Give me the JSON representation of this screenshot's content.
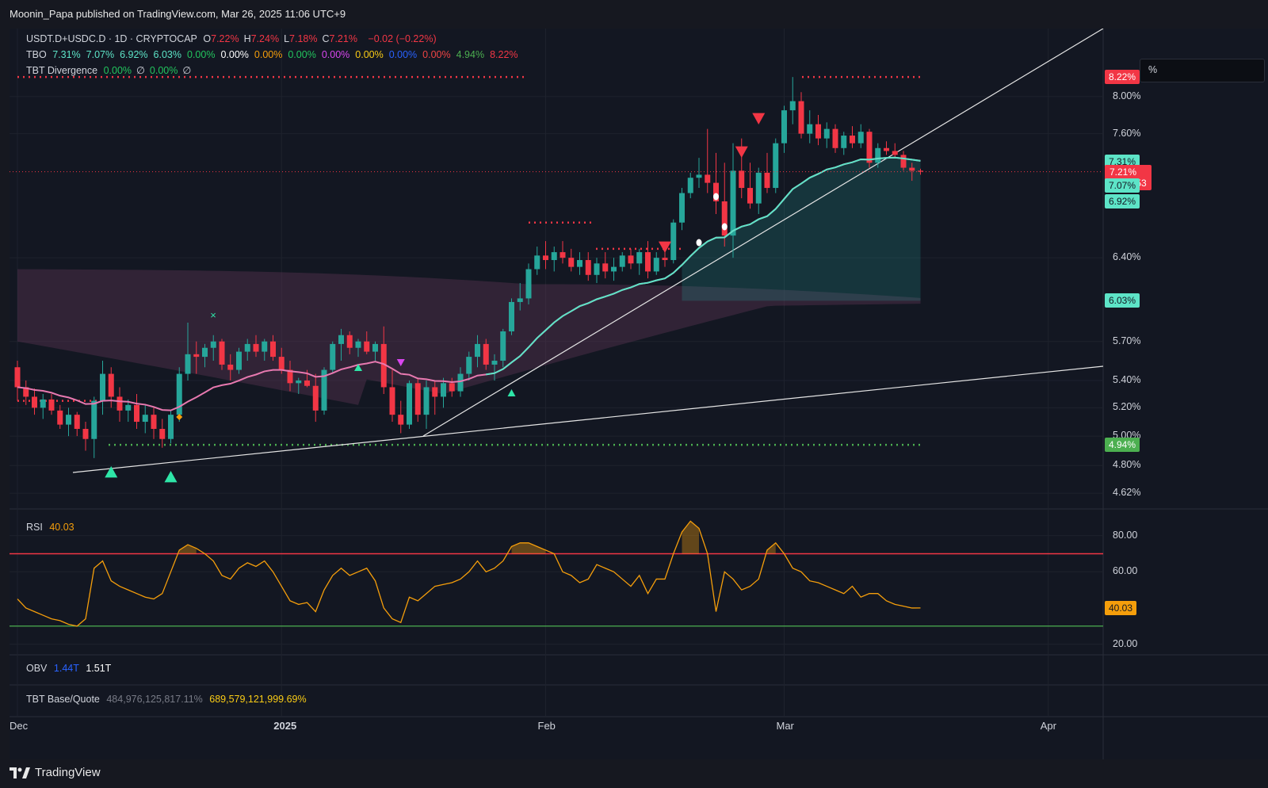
{
  "header": {
    "published": "Moonin_Papa published on TradingView.com, Mar 26, 2025 11:06 UTC+9"
  },
  "legend": {
    "symbol": "USDT.D+USDC.D · 1D · CRYPTOCAP",
    "ohlc": [
      {
        "k": "O",
        "v": "7.22%"
      },
      {
        "k": "H",
        "v": "7.24%"
      },
      {
        "k": "L",
        "v": "7.18%"
      },
      {
        "k": "C",
        "v": "7.21%"
      }
    ],
    "change": "−0.02 (−0.22%)",
    "tbo_label": "TBO",
    "tbo_values": [
      {
        "v": "7.31%",
        "color": "#5de4c7"
      },
      {
        "v": "7.07%",
        "color": "#5de4c7"
      },
      {
        "v": "6.92%",
        "color": "#5de4c7"
      },
      {
        "v": "6.03%",
        "color": "#5de4c7"
      },
      {
        "v": "0.00%",
        "color": "#22c55e"
      },
      {
        "v": "0.00%",
        "color": "#ffffff"
      },
      {
        "v": "0.00%",
        "color": "#f59e0b"
      },
      {
        "v": "0.00%",
        "color": "#22c55e"
      },
      {
        "v": "0.00%",
        "color": "#d946ef"
      },
      {
        "v": "0.00%",
        "color": "#facc15"
      },
      {
        "v": "0.00%",
        "color": "#2962ff"
      },
      {
        "v": "0.00%",
        "color": "#ef4444"
      },
      {
        "v": "4.94%",
        "color": "#4caf50"
      },
      {
        "v": "8.22%",
        "color": "#f23645"
      }
    ],
    "divergence_label": "TBT Divergence",
    "divergence_values": [
      "0.00%",
      "∅",
      "0.00%",
      "∅"
    ]
  },
  "percent_box": "%",
  "price_axis": {
    "ticks": [
      {
        "label": "8.00%",
        "v": 8.0
      },
      {
        "label": "7.60%",
        "v": 7.6
      },
      {
        "label": "6.40%",
        "v": 6.4
      },
      {
        "label": "5.70%",
        "v": 5.7
      },
      {
        "label": "5.40%",
        "v": 5.4
      },
      {
        "label": "5.20%",
        "v": 5.2
      },
      {
        "label": "5.00%",
        "v": 5.0
      },
      {
        "label": "4.80%",
        "v": 4.8
      },
      {
        "label": "4.62%",
        "v": 4.62
      }
    ],
    "tags": [
      {
        "label": "8.22%",
        "v": 8.22,
        "bg": "#f23645",
        "fg": "#ffffff"
      },
      {
        "label": "7.31%",
        "v": 7.31,
        "bg": "#5de4c7",
        "fg": "#131722"
      },
      {
        "label": "7.21%",
        "v": 7.21,
        "bg": "#f23645",
        "fg": "#ffffff",
        "sub": "21:53:53"
      },
      {
        "label": "7.07%",
        "v": 7.07,
        "bg": "#5de4c7",
        "fg": "#131722"
      },
      {
        "label": "6.92%",
        "v": 6.92,
        "bg": "#5de4c7",
        "fg": "#131722"
      },
      {
        "label": "6.03%",
        "v": 6.03,
        "bg": "#5de4c7",
        "fg": "#131722"
      },
      {
        "label": "4.94%",
        "v": 4.94,
        "bg": "#4caf50",
        "fg": "#ffffff"
      }
    ]
  },
  "rsi": {
    "label": "RSI",
    "value": "40.03",
    "ticks": [
      {
        "label": "80.00",
        "v": 80
      },
      {
        "label": "60.00",
        "v": 60
      },
      {
        "label": "20.00",
        "v": 20
      }
    ],
    "upper": 70,
    "lower": 30,
    "tag": {
      "label": "40.03",
      "v": 40.03
    }
  },
  "obv": {
    "label": "OBV",
    "v1": "1.44T",
    "v2": "1.51T"
  },
  "base_quote": {
    "label": "TBT Base/Quote",
    "v1": "484,976,125,817.11%",
    "v2": "689,579,121,999.69%"
  },
  "time_axis": [
    {
      "label": "Dec",
      "day": 0
    },
    {
      "label": "2025",
      "day": 31
    },
    {
      "label": "Feb",
      "day": 62
    },
    {
      "label": "Mar",
      "day": 90
    },
    {
      "label": "Apr",
      "day": 121
    }
  ],
  "brand": "TradingView",
  "colors": {
    "up": "#26a69a",
    "down": "#f23645",
    "ema": "#5de4c7",
    "pink": "#e879b0",
    "rsi": "#f59e0b"
  },
  "chart_data": {
    "type": "candlestick",
    "symbol": "USDT.D+USDC.D",
    "interval": "1D",
    "x_start": "Dec 1, 2024",
    "y_unit": "%",
    "candles": [
      [
        5.5,
        5.55,
        5.25,
        5.35
      ],
      [
        5.35,
        5.4,
        5.22,
        5.28
      ],
      [
        5.28,
        5.34,
        5.15,
        5.2
      ],
      [
        5.2,
        5.3,
        5.12,
        5.26
      ],
      [
        5.26,
        5.3,
        5.15,
        5.18
      ],
      [
        5.18,
        5.22,
        5.05,
        5.08
      ],
      [
        5.08,
        5.2,
        5.0,
        5.15
      ],
      [
        5.15,
        5.17,
        5.0,
        5.05
      ],
      [
        5.05,
        5.1,
        4.9,
        4.98
      ],
      [
        4.98,
        5.28,
        4.85,
        5.25
      ],
      [
        5.25,
        5.55,
        5.15,
        5.45
      ],
      [
        5.45,
        5.5,
        5.2,
        5.28
      ],
      [
        5.28,
        5.35,
        5.1,
        5.18
      ],
      [
        5.18,
        5.26,
        5.1,
        5.22
      ],
      [
        5.22,
        5.3,
        5.05,
        5.1
      ],
      [
        5.1,
        5.22,
        5.02,
        5.15
      ],
      [
        5.15,
        5.2,
        4.98,
        5.05
      ],
      [
        5.05,
        5.12,
        4.92,
        4.98
      ],
      [
        4.98,
        5.18,
        4.95,
        5.15
      ],
      [
        5.15,
        5.5,
        5.1,
        5.45
      ],
      [
        5.45,
        5.85,
        5.4,
        5.6
      ],
      [
        5.6,
        5.7,
        5.45,
        5.58
      ],
      [
        5.58,
        5.68,
        5.5,
        5.65
      ],
      [
        5.65,
        5.75,
        5.55,
        5.7
      ],
      [
        5.7,
        5.72,
        5.48,
        5.52
      ],
      [
        5.52,
        5.6,
        5.4,
        5.48
      ],
      [
        5.48,
        5.65,
        5.45,
        5.62
      ],
      [
        5.62,
        5.72,
        5.55,
        5.68
      ],
      [
        5.68,
        5.75,
        5.58,
        5.62
      ],
      [
        5.62,
        5.72,
        5.55,
        5.7
      ],
      [
        5.7,
        5.75,
        5.55,
        5.58
      ],
      [
        5.58,
        5.65,
        5.45,
        5.48
      ],
      [
        5.48,
        5.55,
        5.32,
        5.38
      ],
      [
        5.38,
        5.42,
        5.3,
        5.4
      ],
      [
        5.4,
        5.48,
        5.35,
        5.36
      ],
      [
        5.36,
        5.45,
        5.1,
        5.18
      ],
      [
        5.18,
        5.5,
        5.15,
        5.48
      ],
      [
        5.48,
        5.7,
        5.45,
        5.68
      ],
      [
        5.68,
        5.8,
        5.55,
        5.75
      ],
      [
        5.75,
        5.78,
        5.6,
        5.65
      ],
      [
        5.65,
        5.72,
        5.58,
        5.7
      ],
      [
        5.7,
        5.78,
        5.6,
        5.62
      ],
      [
        5.62,
        5.7,
        5.55,
        5.68
      ],
      [
        5.68,
        5.82,
        5.3,
        5.35
      ],
      [
        5.35,
        5.48,
        5.1,
        5.15
      ],
      [
        5.15,
        5.25,
        5.02,
        5.08
      ],
      [
        5.08,
        5.4,
        5.05,
        5.38
      ],
      [
        5.38,
        5.42,
        5.1,
        5.15
      ],
      [
        5.15,
        5.4,
        5.05,
        5.35
      ],
      [
        5.35,
        5.4,
        5.15,
        5.28
      ],
      [
        5.28,
        5.42,
        5.2,
        5.38
      ],
      [
        5.38,
        5.42,
        5.28,
        5.32
      ],
      [
        5.32,
        5.5,
        5.28,
        5.45
      ],
      [
        5.45,
        5.62,
        5.4,
        5.58
      ],
      [
        5.58,
        5.75,
        5.5,
        5.68
      ],
      [
        5.68,
        5.72,
        5.48,
        5.52
      ],
      [
        5.52,
        5.6,
        5.4,
        5.55
      ],
      [
        5.55,
        5.8,
        5.5,
        5.78
      ],
      [
        5.78,
        6.05,
        5.75,
        6.02
      ],
      [
        6.02,
        6.18,
        5.95,
        6.05
      ],
      [
        6.05,
        6.35,
        6.0,
        6.3
      ],
      [
        6.3,
        6.5,
        6.25,
        6.42
      ],
      [
        6.42,
        6.55,
        6.3,
        6.38
      ],
      [
        6.38,
        6.5,
        6.28,
        6.45
      ],
      [
        6.45,
        6.55,
        6.35,
        6.4
      ],
      [
        6.4,
        6.48,
        6.28,
        6.32
      ],
      [
        6.32,
        6.45,
        6.25,
        6.38
      ],
      [
        6.38,
        6.45,
        6.2,
        6.25
      ],
      [
        6.25,
        6.4,
        6.18,
        6.35
      ],
      [
        6.35,
        6.45,
        6.22,
        6.28
      ],
      [
        6.28,
        6.4,
        6.2,
        6.32
      ],
      [
        6.32,
        6.45,
        6.28,
        6.42
      ],
      [
        6.42,
        6.48,
        6.3,
        6.35
      ],
      [
        6.35,
        6.48,
        6.25,
        6.45
      ],
      [
        6.45,
        6.55,
        6.22,
        6.28
      ],
      [
        6.28,
        6.45,
        6.25,
        6.4
      ],
      [
        6.4,
        6.5,
        6.32,
        6.38
      ],
      [
        6.38,
        6.75,
        6.35,
        6.72
      ],
      [
        6.72,
        7.05,
        6.65,
        7.0
      ],
      [
        7.0,
        7.2,
        6.95,
        7.15
      ],
      [
        7.15,
        7.35,
        7.05,
        7.18
      ],
      [
        7.18,
        7.65,
        7.0,
        7.1
      ],
      [
        7.1,
        7.4,
        6.8,
        6.92
      ],
      [
        6.92,
        7.3,
        6.5,
        6.6
      ],
      [
        6.6,
        7.5,
        6.4,
        7.22
      ],
      [
        7.22,
        7.55,
        6.95,
        7.05
      ],
      [
        7.05,
        7.3,
        6.85,
        6.9
      ],
      [
        6.9,
        7.25,
        6.8,
        7.2
      ],
      [
        7.2,
        7.4,
        7.0,
        7.05
      ],
      [
        7.05,
        7.55,
        7.0,
        7.5
      ],
      [
        7.5,
        7.9,
        7.4,
        7.85
      ],
      [
        7.85,
        8.22,
        7.7,
        7.95
      ],
      [
        7.95,
        8.05,
        7.55,
        7.6
      ],
      [
        7.6,
        7.85,
        7.5,
        7.7
      ],
      [
        7.7,
        7.8,
        7.48,
        7.55
      ],
      [
        7.55,
        7.72,
        7.45,
        7.65
      ],
      [
        7.65,
        7.7,
        7.4,
        7.45
      ],
      [
        7.45,
        7.62,
        7.38,
        7.58
      ],
      [
        7.58,
        7.68,
        7.45,
        7.5
      ],
      [
        7.5,
        7.7,
        7.45,
        7.62
      ],
      [
        7.62,
        7.65,
        7.25,
        7.3
      ],
      [
        7.3,
        7.5,
        7.25,
        7.45
      ],
      [
        7.45,
        7.52,
        7.38,
        7.42
      ],
      [
        7.42,
        7.5,
        7.35,
        7.38
      ],
      [
        7.38,
        7.42,
        7.22,
        7.25
      ],
      [
        7.25,
        7.3,
        7.12,
        7.22
      ],
      [
        7.22,
        7.24,
        7.18,
        7.21
      ]
    ],
    "levels": [
      {
        "name": "8.22%",
        "value": 8.22,
        "color": "#f23645"
      },
      {
        "name": "4.94%",
        "value": 4.94,
        "color": "#4caf50"
      }
    ],
    "rsi": [
      45,
      40,
      38,
      36,
      34,
      33,
      31,
      30,
      34,
      62,
      66,
      55,
      52,
      50,
      48,
      46,
      45,
      48,
      60,
      72,
      75,
      73,
      70,
      66,
      58,
      56,
      62,
      65,
      63,
      66,
      60,
      52,
      44,
      42,
      43,
      38,
      50,
      58,
      62,
      58,
      60,
      62,
      55,
      40,
      34,
      32,
      46,
      44,
      48,
      52,
      53,
      54,
      56,
      60,
      66,
      60,
      62,
      66,
      74,
      76,
      76,
      74,
      72,
      70,
      60,
      58,
      54,
      56,
      64,
      62,
      60,
      56,
      52,
      58,
      48,
      56,
      56,
      70,
      82,
      88,
      84,
      70,
      38,
      60,
      56,
      50,
      52,
      56,
      72,
      76,
      70,
      62,
      60,
      55,
      54,
      52,
      50,
      48,
      52,
      46,
      48,
      48,
      44,
      42,
      41,
      40,
      40.03
    ]
  }
}
